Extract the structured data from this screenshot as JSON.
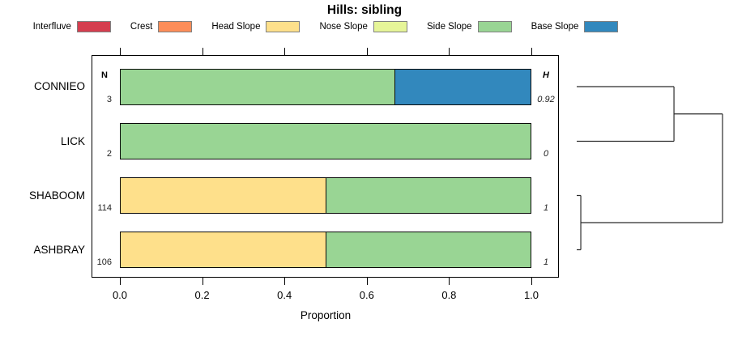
{
  "title": "Hills: sibling",
  "legend": [
    {
      "label": "Interfluve",
      "color": "#D53E4F"
    },
    {
      "label": "Crest",
      "color": "#FC8D59"
    },
    {
      "label": "Head Slope",
      "color": "#FEE08B"
    },
    {
      "label": "Nose Slope",
      "color": "#E6F598"
    },
    {
      "label": "Side Slope",
      "color": "#99D594"
    },
    {
      "label": "Base Slope",
      "color": "#3288BD"
    }
  ],
  "columns": {
    "n_header": "N",
    "h_header": "H"
  },
  "chart_data": {
    "type": "bar",
    "stacked": true,
    "orientation": "horizontal",
    "title": "Hills: sibling",
    "xlabel": "Proportion",
    "xlim": [
      0,
      1
    ],
    "x_ticks": [
      "0.0",
      "0.2",
      "0.4",
      "0.6",
      "0.8",
      "1.0"
    ],
    "categories": [
      "CONNIEO",
      "LICK",
      "SHABOOM",
      "ASHBRAY"
    ],
    "rows": [
      {
        "label": "CONNIEO",
        "n": "3",
        "h": "0.92",
        "segments": [
          {
            "name": "Side Slope",
            "value": 0.667
          },
          {
            "name": "Base Slope",
            "value": 0.333
          }
        ]
      },
      {
        "label": "LICK",
        "n": "2",
        "h": "0",
        "segments": [
          {
            "name": "Side Slope",
            "value": 1.0
          }
        ]
      },
      {
        "label": "SHABOOM",
        "n": "114",
        "h": "1",
        "segments": [
          {
            "name": "Head Slope",
            "value": 0.5
          },
          {
            "name": "Side Slope",
            "value": 0.5
          }
        ]
      },
      {
        "label": "ASHBRAY",
        "n": "106",
        "h": "1",
        "segments": [
          {
            "name": "Head Slope",
            "value": 0.5
          },
          {
            "name": "Side Slope",
            "value": 0.5
          }
        ]
      }
    ],
    "series_colors": {
      "Interfluve": "#D53E4F",
      "Crest": "#FC8D59",
      "Head Slope": "#FEE08B",
      "Nose Slope": "#E6F598",
      "Side Slope": "#99D594",
      "Base Slope": "#3288BD"
    },
    "dendrogram": {
      "height": 1.0,
      "children": [
        {
          "height": 0.667,
          "children": [
            {
              "leaf": "CONNIEO"
            },
            {
              "leaf": "LICK"
            }
          ]
        },
        {
          "height": 0.028,
          "children": [
            {
              "leaf": "SHABOOM"
            },
            {
              "leaf": "ASHBRAY"
            }
          ]
        }
      ]
    }
  }
}
